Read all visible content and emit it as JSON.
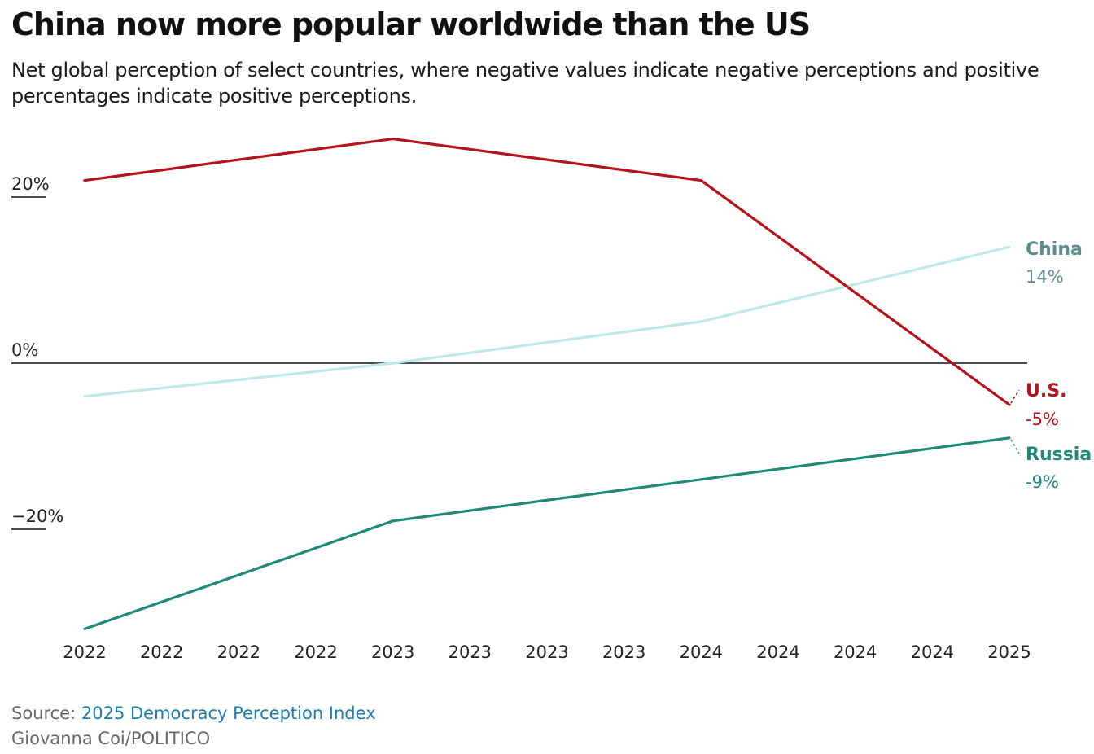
{
  "title": "China now more popular worldwide than the US",
  "subtitle": "Net global perception of select countries, where negative values indicate negative perceptions and positive percentages indicate positive perceptions.",
  "source": {
    "prefix": "Source: ",
    "link_text": "2025 Democracy Perception Index"
  },
  "credit": "Giovanna Coi/POLITICO",
  "colors": {
    "us": "#b5121b",
    "china": "#bfe9e6",
    "russia": "#1f8a78",
    "china_label": "#5a8e88",
    "source_link": "#1a7db0"
  },
  "chart_data": {
    "type": "line",
    "x_tick_labels": [
      "2022",
      "2022",
      "2022",
      "2022",
      "2023",
      "2023",
      "2023",
      "2023",
      "2024",
      "2024",
      "2024",
      "2024",
      "2025"
    ],
    "y_ticks": [
      {
        "value": 20,
        "label": "20%"
      },
      {
        "value": 0,
        "label": "0%"
      },
      {
        "value": -20,
        "label": "−20%"
      }
    ],
    "ylim": [
      -32,
      27
    ],
    "grid": false,
    "series": [
      {
        "key": "us",
        "name": "U.S.",
        "value_label": "-5%",
        "points": [
          {
            "x": 2022,
            "y": 22
          },
          {
            "x": 2023,
            "y": 27
          },
          {
            "x": 2024,
            "y": 22
          },
          {
            "x": 2025,
            "y": -5
          }
        ]
      },
      {
        "key": "china",
        "name": "China",
        "value_label": "14%",
        "points": [
          {
            "x": 2022,
            "y": -4
          },
          {
            "x": 2023,
            "y": 0
          },
          {
            "x": 2024,
            "y": 5
          },
          {
            "x": 2025,
            "y": 14
          }
        ]
      },
      {
        "key": "russia",
        "name": "Russia",
        "value_label": "-9%",
        "points": [
          {
            "x": 2022,
            "y": -32
          },
          {
            "x": 2023,
            "y": -19
          },
          {
            "x": 2024,
            "y": -14
          },
          {
            "x": 2025,
            "y": -9
          }
        ]
      }
    ]
  }
}
